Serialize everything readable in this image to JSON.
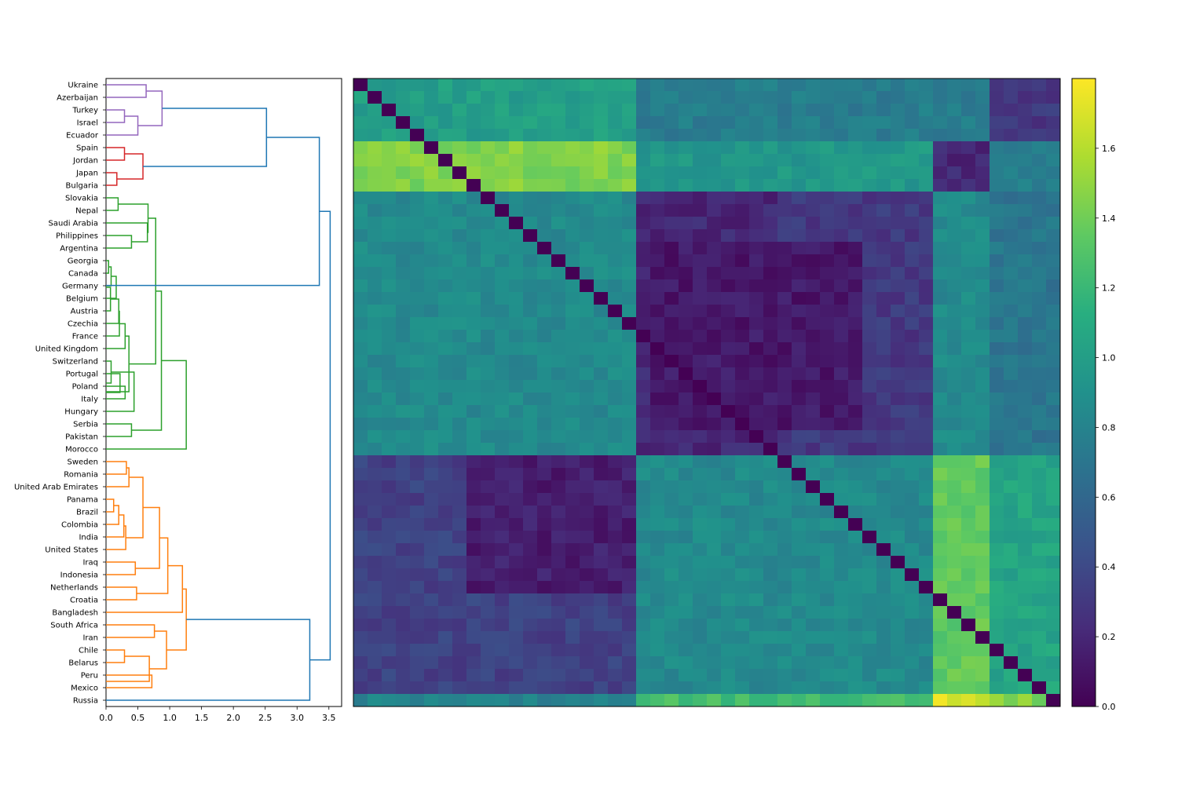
{
  "chart_data": [
    {
      "type": "dendrogram",
      "orientation": "left",
      "xlim": [
        0,
        3.7
      ],
      "xticks": [
        "0.0",
        "0.5",
        "1.0",
        "1.5",
        "2.0",
        "2.5",
        "3.0",
        "3.5"
      ],
      "leaves": [
        "Ukraine",
        "Azerbaijan",
        "Turkey",
        "Israel",
        "Ecuador",
        "Spain",
        "Jordan",
        "Japan",
        "Bulgaria",
        "Slovakia",
        "Nepal",
        "Saudi Arabia",
        "Philippines",
        "Argentina",
        "Georgia",
        "Canada",
        "Germany",
        "Belgium",
        "Austria",
        "Czechia",
        "France",
        "United Kingdom",
        "Switzerland",
        "Portugal",
        "Poland",
        "Italy",
        "Hungary",
        "Serbia",
        "Pakistan",
        "Morocco",
        "Sweden",
        "Romania",
        "United Arab Emirates",
        "Panama",
        "Brazil",
        "Colombia",
        "India",
        "United States",
        "Iraq",
        "Indonesia",
        "Netherlands",
        "Croatia",
        "Bangladesh",
        "South Africa",
        "Iran",
        "Chile",
        "Belarus",
        "Peru",
        "Mexico",
        "Russia"
      ],
      "colors": {
        "purple": "#9467bd",
        "red": "#d62728",
        "green": "#2ca02c",
        "orange": "#ff7f0e",
        "blue": "#1f77b4"
      },
      "links": [
        {
          "a": 2,
          "b": 3,
          "h": 0.29,
          "c": "purple"
        },
        {
          "a": 2.5,
          "b": 4,
          "h": 0.5,
          "c": "purple"
        },
        {
          "a": 0,
          "b": 1,
          "h": 0.63,
          "c": "purple"
        },
        {
          "a": 0.5,
          "b": 3.25,
          "h": 0.88,
          "c": "purple"
        },
        {
          "a": 5,
          "b": 6,
          "h": 0.29,
          "c": "red"
        },
        {
          "a": 7,
          "b": 8,
          "h": 0.17,
          "c": "red"
        },
        {
          "a": 5.5,
          "b": 7.5,
          "h": 0.58,
          "c": "red"
        },
        {
          "a": 1.875,
          "b": 6.5,
          "h": 2.52,
          "c": "blue"
        },
        {
          "a": 14,
          "b": 15,
          "h": 0.04,
          "c": "green"
        },
        {
          "a": 14.5,
          "b": 16,
          "h": 0.08,
          "c": "green"
        },
        {
          "a": 15.25,
          "b": 17,
          "h": 0.16,
          "c": "green"
        },
        {
          "a": 16.125,
          "b": 18,
          "h": 0.07,
          "c": "green"
        },
        {
          "a": 17.0625,
          "b": 19,
          "h": 0.2,
          "c": "green"
        },
        {
          "a": 18.03,
          "b": 20,
          "h": 0.21,
          "c": "green"
        },
        {
          "a": 19.02,
          "b": 21,
          "h": 0.3,
          "c": "green"
        },
        {
          "a": 24,
          "b": 25,
          "h": 0.3,
          "c": "green"
        },
        {
          "a": 23,
          "b": 24.5,
          "h": 0.22,
          "c": "green"
        },
        {
          "a": 22,
          "b": 23.75,
          "h": 0.08,
          "c": "green"
        },
        {
          "a": 22.875,
          "b": 26,
          "h": 0.44,
          "c": "green"
        },
        {
          "a": 20.01,
          "b": 24.44,
          "h": 0.36,
          "c": "green"
        },
        {
          "a": 9,
          "b": 10,
          "h": 0.19,
          "c": "green"
        },
        {
          "a": 12,
          "b": 13,
          "h": 0.4,
          "c": "green"
        },
        {
          "a": 11,
          "b": 12.5,
          "h": 0.65,
          "c": "green"
        },
        {
          "a": 9.5,
          "b": 11.75,
          "h": 0.66,
          "c": "green"
        },
        {
          "a": 10.625,
          "b": 22.23,
          "h": 0.78,
          "c": "green"
        },
        {
          "a": 27,
          "b": 28,
          "h": 0.4,
          "c": "green"
        },
        {
          "a": 16.43,
          "b": 27.5,
          "h": 0.87,
          "c": "green"
        },
        {
          "a": 21.96,
          "b": 29,
          "h": 1.26,
          "c": "green"
        },
        {
          "a": 30,
          "b": 31,
          "h": 0.32,
          "c": "orange"
        },
        {
          "a": 30.5,
          "b": 32,
          "h": 0.36,
          "c": "orange"
        },
        {
          "a": 33,
          "b": 34,
          "h": 0.12,
          "c": "orange"
        },
        {
          "a": 33.5,
          "b": 35,
          "h": 0.2,
          "c": "orange"
        },
        {
          "a": 34.25,
          "b": 36,
          "h": 0.28,
          "c": "orange"
        },
        {
          "a": 35.125,
          "b": 37,
          "h": 0.31,
          "c": "orange"
        },
        {
          "a": 31.25,
          "b": 36.06,
          "h": 0.58,
          "c": "orange"
        },
        {
          "a": 38,
          "b": 39,
          "h": 0.46,
          "c": "orange"
        },
        {
          "a": 33.66,
          "b": 38.5,
          "h": 0.84,
          "c": "orange"
        },
        {
          "a": 40,
          "b": 41,
          "h": 0.48,
          "c": "orange"
        },
        {
          "a": 36.08,
          "b": 40.5,
          "h": 0.97,
          "c": "orange"
        },
        {
          "a": 38.29,
          "b": 42,
          "h": 1.2,
          "c": "orange"
        },
        {
          "a": 43,
          "b": 44,
          "h": 0.76,
          "c": "orange"
        },
        {
          "a": 45,
          "b": 46,
          "h": 0.29,
          "c": "orange"
        },
        {
          "a": 47,
          "b": 48,
          "h": 0.72,
          "c": "orange"
        },
        {
          "a": 45.5,
          "b": 47.5,
          "h": 0.68,
          "c": "orange"
        },
        {
          "a": 43.5,
          "b": 46.5,
          "h": 0.95,
          "c": "orange"
        },
        {
          "a": 40.15,
          "b": 45,
          "h": 1.26,
          "c": "orange"
        },
        {
          "a": 42.57,
          "b": 49,
          "h": 3.2,
          "c": "blue"
        },
        {
          "a": 4.19,
          "b": 15.98,
          "h": 3.35,
          "c": "blue"
        },
        {
          "a": 10.08,
          "b": 45.79,
          "h": 3.52,
          "c": "blue"
        }
      ]
    },
    {
      "type": "heatmap",
      "rows": 50,
      "cols": 50,
      "row_labels": "same leaf order as dendrogram",
      "blocks": [
        {
          "r": [
            0,
            4
          ],
          "c": [
            0,
            19
          ],
          "v": 1.0
        },
        {
          "r": [
            0,
            4
          ],
          "c": [
            20,
            49
          ],
          "v": 0.75
        },
        {
          "r": [
            0,
            4
          ],
          "c": [
            45,
            49
          ],
          "v": 0.3
        },
        {
          "r": [
            5,
            8
          ],
          "c": [
            0,
            19
          ],
          "v": 1.45
        },
        {
          "r": [
            5,
            8
          ],
          "c": [
            20,
            40
          ],
          "v": 0.95
        },
        {
          "r": [
            5,
            8
          ],
          "c": [
            41,
            44
          ],
          "v": 0.2
        },
        {
          "r": [
            5,
            8
          ],
          "c": [
            45,
            49
          ],
          "v": 0.75
        },
        {
          "r": [
            9,
            29
          ],
          "c": [
            0,
            19
          ],
          "v": 0.85
        },
        {
          "r": [
            9,
            29
          ],
          "c": [
            20,
            29
          ],
          "v": 0.2
        },
        {
          "r": [
            9,
            29
          ],
          "c": [
            30,
            40
          ],
          "v": 0.3
        },
        {
          "r": [
            9,
            29
          ],
          "c": [
            41,
            44
          ],
          "v": 0.85
        },
        {
          "r": [
            9,
            29
          ],
          "c": [
            45,
            49
          ],
          "v": 0.7
        },
        {
          "r": [
            13,
            27
          ],
          "c": [
            21,
            35
          ],
          "v": 0.12
        },
        {
          "r": [
            30,
            48
          ],
          "c": [
            0,
            19
          ],
          "v": 0.35
        },
        {
          "r": [
            30,
            48
          ],
          "c": [
            20,
            40
          ],
          "v": 0.85
        },
        {
          "r": [
            30,
            48
          ],
          "c": [
            41,
            44
          ],
          "v": 1.35
        },
        {
          "r": [
            30,
            48
          ],
          "c": [
            45,
            49
          ],
          "v": 1.05
        },
        {
          "r": [
            30,
            40
          ],
          "c": [
            8,
            19
          ],
          "v": 0.15
        },
        {
          "r": [
            49,
            49
          ],
          "c": [
            0,
            19
          ],
          "v": 0.8
        },
        {
          "r": [
            49,
            49
          ],
          "c": [
            20,
            40
          ],
          "v": 1.25
        },
        {
          "r": [
            49,
            49
          ],
          "c": [
            41,
            44
          ],
          "v": 1.7
        },
        {
          "r": [
            49,
            49
          ],
          "c": [
            45,
            49
          ],
          "v": 1.45
        }
      ],
      "vmin": 0.0,
      "vmax": 1.8,
      "colorbar_ticks": [
        "0.0",
        "0.2",
        "0.4",
        "0.6",
        "0.8",
        "1.0",
        "1.2",
        "1.4",
        "1.6"
      ]
    }
  ]
}
